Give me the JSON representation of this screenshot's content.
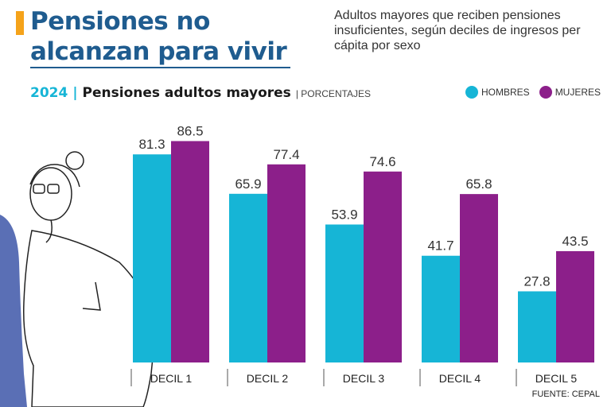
{
  "header": {
    "title_line1": "Pensiones no",
    "title_line2": "alcanzan para vivir",
    "subtitle": "Adultos mayores que reciben pensiones insuficientes, según deciles de ingresos per cápita por sexo",
    "year": "2024",
    "separator": "|",
    "chart_title": "Pensiones adultos mayores",
    "unit": "| PORCENTAJES"
  },
  "legend": {
    "men": "HOMBRES",
    "women": "MUJERES"
  },
  "source": "FUENTE: CEPAL",
  "colors": {
    "men": "#16b5d6",
    "women": "#8c1f8a",
    "title": "#1f5c8f",
    "accent": "#f5a31a"
  },
  "chart_data": {
    "type": "bar",
    "title": "Pensiones adultos mayores",
    "categories": [
      "DECIL 1",
      "DECIL 2",
      "DECIL 3",
      "DECIL 4",
      "DECIL 5"
    ],
    "series": [
      {
        "name": "HOMBRES",
        "values": [
          81.3,
          65.9,
          53.9,
          41.7,
          27.8
        ]
      },
      {
        "name": "MUJERES",
        "values": [
          86.5,
          77.4,
          74.6,
          65.8,
          43.5
        ]
      }
    ],
    "xlabel": "",
    "ylabel": "",
    "ylim": [
      0,
      100
    ],
    "grid": false,
    "legend": "top-right"
  }
}
